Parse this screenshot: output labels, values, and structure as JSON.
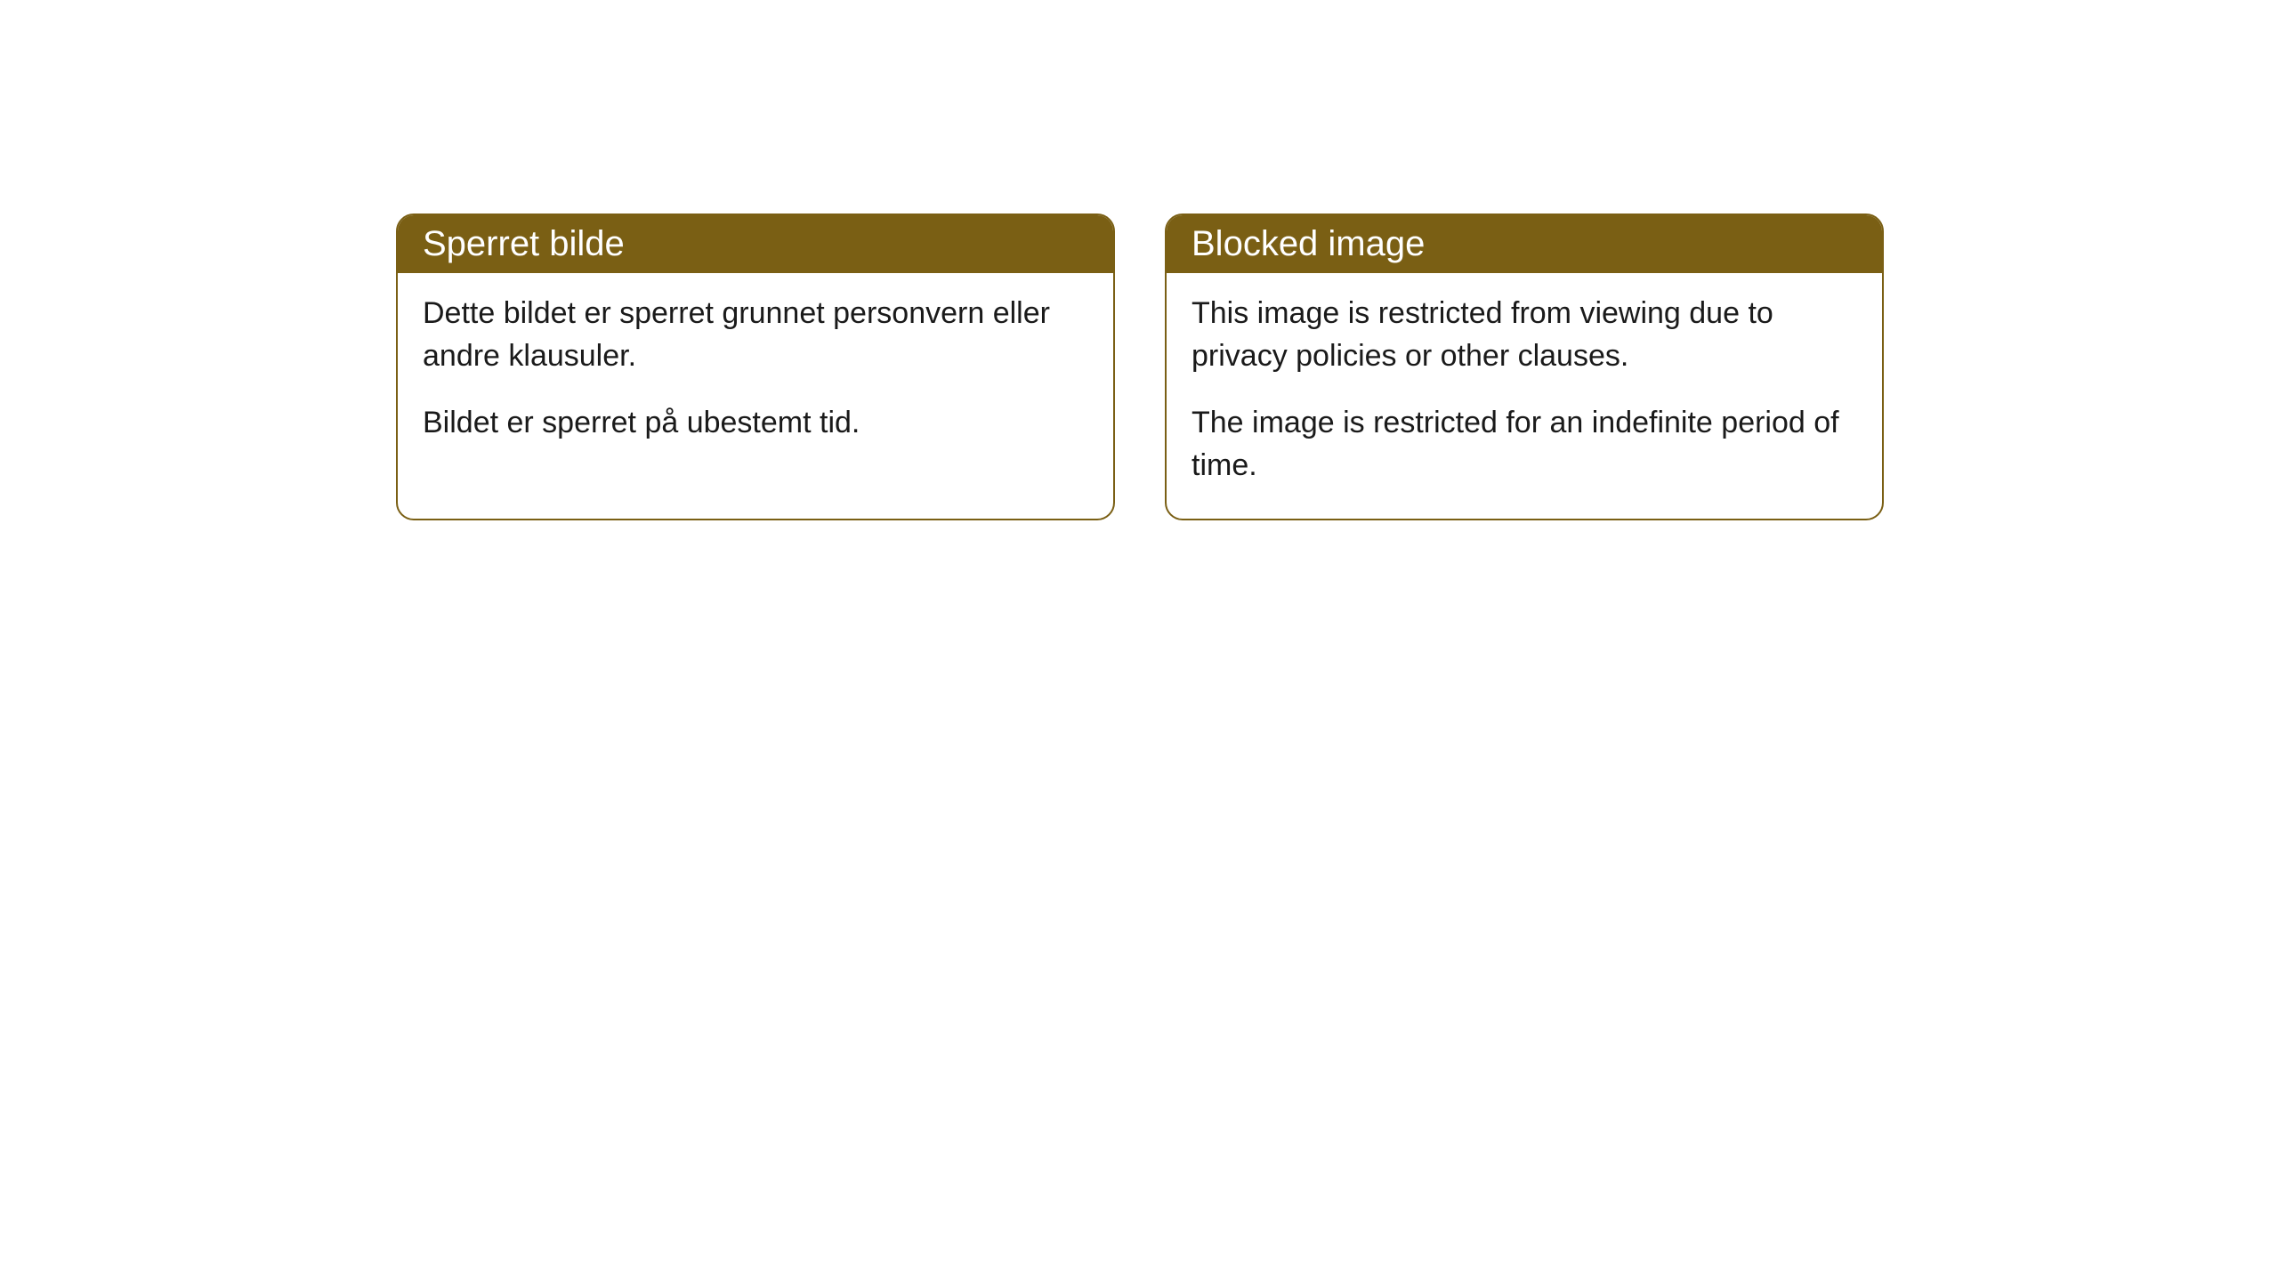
{
  "cards": [
    {
      "title": "Sperret bilde",
      "paragraph1": "Dette bildet er sperret grunnet personvern eller andre klausuler.",
      "paragraph2": "Bildet er sperret på ubestemt tid."
    },
    {
      "title": "Blocked image",
      "paragraph1": "This image is restricted from viewing due to privacy policies or other clauses.",
      "paragraph2": "The image is restricted for an indefinite period of time."
    }
  ],
  "styling": {
    "header_background": "#7a5f14",
    "header_text_color": "#ffffff",
    "border_color": "#7a5f14",
    "body_text_color": "#1a1a1a",
    "card_background": "#ffffff",
    "page_background": "#ffffff",
    "border_radius": 20,
    "header_fontsize": 40,
    "body_fontsize": 34
  }
}
